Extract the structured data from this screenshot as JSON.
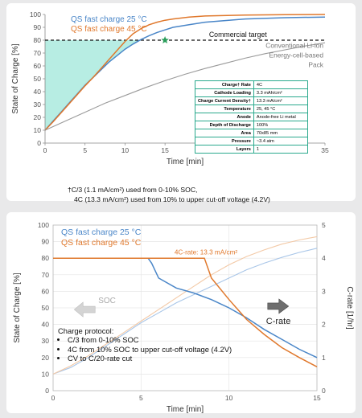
{
  "colors": {
    "blue": "#4a86c8",
    "orange": "#e0782c",
    "gray": "#9a9a9a",
    "teal_fill": "#5fd6c0",
    "star": "#2a9d5a",
    "table_border": "#2aa98d"
  },
  "top_panel": {
    "footnote": {
      "line1": "†C/3 (1.1 mA/cm²) used from 0-10% SOC,",
      "line2": "4C (13.3 mA/cm²) used from 10% to upper cut-off voltage (4.2V)"
    },
    "annotations": {
      "commercial_target": "Commercial target",
      "conventional_line1": "Conventional Li-ion",
      "conventional_line2": "Energy-cell-based",
      "conventional_line3": "Pack"
    },
    "table": [
      {
        "key": "Charge† Rate",
        "value": "4C"
      },
      {
        "key": "Cathode Loading",
        "value": "3.3 mAh/cm²"
      },
      {
        "key": "Charge Current Density†",
        "value": "13.3 mA/cm²"
      },
      {
        "key": "Temperature",
        "value": "25, 45 °C"
      },
      {
        "key": "Anode",
        "value": "Anode-free Li metal"
      },
      {
        "key": "Depth of Discharge",
        "value": "100%"
      },
      {
        "key": "Area",
        "value": "70x85 mm"
      },
      {
        "key": "Pressure",
        "value": "~3.4 atm"
      },
      {
        "key": "Layers",
        "value": "1"
      }
    ]
  },
  "bottom_panel": {
    "annotations": {
      "orange_label": "4C-rate: 13.3 mA/cm²",
      "soc_arrow_label": "SOC",
      "crate_arrow_label": "C-rate"
    },
    "protocol": {
      "title": "Charge protocol:",
      "items": [
        "C/3 from 0-10% SOC",
        "4C from 10% SOC to upper cut-off voltage (4.2V)",
        "CV to C/20-rate cut"
      ]
    }
  },
  "chart_data": [
    {
      "type": "line",
      "xlabel": "Time [min]",
      "ylabel": "State of Charge [%]",
      "xlim": [
        0,
        35
      ],
      "ylim": [
        0,
        100
      ],
      "xticks": [
        0,
        5,
        10,
        15,
        20,
        25,
        30,
        35
      ],
      "yticks": [
        0,
        10,
        20,
        30,
        40,
        50,
        60,
        70,
        80,
        90,
        100
      ],
      "grid": false,
      "series": [
        {
          "name": "QS fast charge 25 °C",
          "color": "#4a86c8",
          "x": [
            0,
            1,
            2,
            3,
            4,
            5,
            6,
            7,
            8,
            9,
            10,
            11,
            12,
            13,
            14,
            15,
            16,
            18,
            20,
            25,
            30,
            35
          ],
          "y": [
            10,
            17,
            24,
            31,
            38,
            45,
            51,
            57,
            63,
            68,
            73,
            77,
            80.5,
            83.5,
            86,
            88,
            90,
            92,
            94,
            96.5,
            97.5,
            98
          ]
        },
        {
          "name": "QS fast charge 45 °C",
          "color": "#e0782c",
          "x": [
            0,
            1,
            2,
            3,
            4,
            5,
            6,
            7,
            8,
            9,
            10,
            11,
            12,
            13,
            14,
            15,
            16,
            18,
            20,
            25,
            30,
            35
          ],
          "y": [
            10,
            16.5,
            23.5,
            30.5,
            37.5,
            44.5,
            51,
            58,
            65,
            72,
            79,
            85,
            89,
            92,
            94,
            95.5,
            96.5,
            98,
            98.8,
            99.5,
            99.8,
            100
          ]
        },
        {
          "name": "Conventional Li-ion Energy-cell-based Pack",
          "color": "#9a9a9a",
          "x": [
            0,
            2.5,
            5,
            7.5,
            10,
            12.5,
            15,
            17.5,
            20,
            22.5,
            25,
            27.5,
            30,
            32.5,
            35
          ],
          "y": [
            10,
            17,
            24,
            31,
            37,
            43,
            48.5,
            53.5,
            58,
            62,
            66,
            69.5,
            72.5,
            75.5,
            78
          ]
        }
      ],
      "reference_line": {
        "y": 80,
        "label": "Commercial target"
      },
      "marker": {
        "x": 15,
        "y": 80,
        "shape": "star"
      },
      "legend": "top-left"
    },
    {
      "type": "line",
      "xlabel": "Time [min]",
      "ylabel": "State of Charge [%]",
      "y2label": "C-rate [1/hr]",
      "xlim": [
        0,
        15
      ],
      "ylim": [
        0,
        100
      ],
      "y2lim": [
        0,
        5
      ],
      "xticks": [
        0,
        5,
        10,
        15
      ],
      "yticks": [
        0,
        10,
        20,
        30,
        40,
        50,
        60,
        70,
        80,
        90,
        100
      ],
      "y2ticks": [
        0,
        1,
        2,
        3,
        4,
        5
      ],
      "grid": true,
      "series": [
        {
          "name": "QS fast charge 25 °C",
          "color": "#4a86c8",
          "axis": "right",
          "x": [
            0,
            2,
            4,
            5.4,
            5.6,
            6,
            7,
            8,
            9,
            10,
            11,
            12,
            13,
            14,
            15
          ],
          "y": [
            4,
            4,
            4,
            4,
            3.85,
            3.4,
            3.1,
            2.95,
            2.75,
            2.5,
            2.2,
            1.85,
            1.55,
            1.25,
            1.0
          ]
        },
        {
          "name": "QS fast charge 45 °C",
          "color": "#e0782c",
          "axis": "right",
          "x": [
            0,
            2,
            4,
            6,
            8,
            8.6,
            9,
            10,
            11,
            12,
            13,
            14,
            15
          ],
          "y": [
            4,
            4,
            4,
            4,
            4,
            4,
            3.4,
            2.75,
            2.15,
            1.7,
            1.3,
            1.0,
            0.72
          ]
        },
        {
          "name": "SOC 25 °C",
          "color": "#a9c6e8",
          "axis": "left",
          "x": [
            0,
            1,
            2,
            3,
            4,
            5,
            6,
            7,
            8,
            9,
            10,
            11,
            12,
            13,
            14,
            15
          ],
          "y": [
            10,
            14,
            20,
            27,
            34,
            41,
            47,
            53,
            58,
            63,
            68,
            73,
            77,
            80.5,
            83.5,
            86
          ]
        },
        {
          "name": "SOC 45 °C",
          "color": "#f3c9a6",
          "axis": "left",
          "x": [
            0,
            1,
            2,
            3,
            4,
            5,
            6,
            7,
            8,
            9,
            10,
            11,
            12,
            13,
            14,
            15
          ],
          "y": [
            10,
            15,
            21,
            28,
            35,
            42,
            49,
            56,
            63,
            70,
            76,
            81,
            85,
            88.5,
            91,
            93
          ]
        }
      ],
      "legend": "top-left"
    }
  ]
}
